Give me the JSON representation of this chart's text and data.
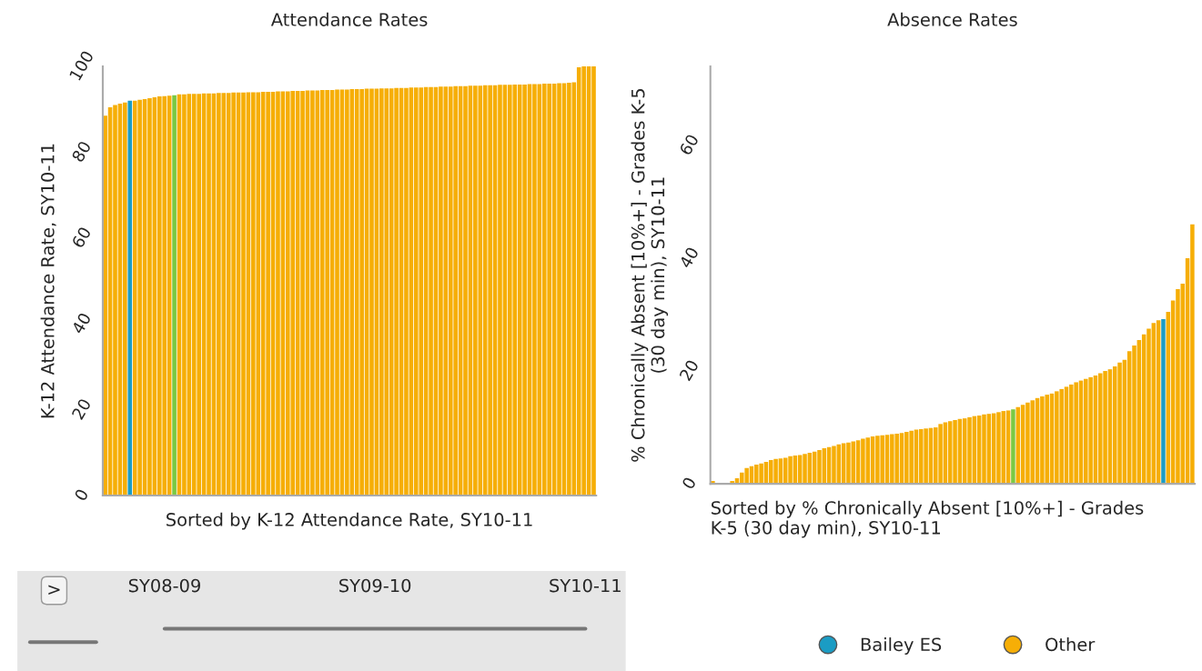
{
  "chart_data": [
    {
      "type": "bar",
      "title": "Attendance Rates",
      "xlabel": "Sorted by K-12 Attendance Rate, SY10-11",
      "ylabel": "K-12 Attendance Rate, SY10-11",
      "ylim": [
        0,
        100
      ],
      "yticks": [
        0,
        20,
        40,
        60,
        80,
        100
      ],
      "grid": false,
      "legend": false,
      "categories": [
        null,
        null,
        null,
        null,
        null,
        null,
        null,
        null,
        null,
        null,
        null,
        null,
        null,
        null,
        null,
        null,
        null,
        null,
        null,
        null,
        null,
        null,
        null,
        null,
        null,
        null,
        null,
        null,
        null,
        null,
        null,
        null,
        null,
        null,
        null,
        null,
        null,
        null,
        null,
        null,
        null,
        null,
        null,
        null,
        null,
        null,
        null,
        null,
        null,
        null,
        null,
        null,
        null,
        null,
        null,
        null,
        null,
        null,
        null,
        null,
        null,
        null,
        null,
        null,
        null,
        null,
        null,
        null,
        null,
        null,
        null,
        null,
        null,
        null,
        null,
        null,
        null,
        null,
        null,
        null,
        null,
        null,
        null,
        null,
        null,
        null,
        null,
        null,
        null,
        null,
        null,
        null,
        null,
        null,
        null,
        null,
        null,
        null,
        null,
        null
      ],
      "annotations": [
        ">",
        "SY08-09",
        "SY09-10",
        "SY10-11"
      ],
      "series": [
        {
          "color": "#1b9cc4",
          "values": [
            null,
            null,
            null,
            null,
            null,
            92.0,
            null,
            null,
            null,
            null,
            null,
            null,
            null,
            null,
            null,
            null,
            null,
            null,
            null,
            null,
            null,
            null,
            null,
            null,
            null,
            null,
            null,
            null,
            null,
            null,
            null,
            null,
            null,
            null,
            null,
            null,
            null,
            null,
            null,
            null,
            null,
            null,
            null,
            null,
            null,
            null,
            null,
            null,
            null,
            null,
            null,
            null,
            null,
            null,
            null,
            null,
            null,
            null,
            null,
            null,
            null,
            null,
            null,
            null,
            null,
            null,
            null,
            null,
            null,
            null,
            null,
            null,
            null,
            null,
            null,
            null,
            null,
            null,
            null,
            null,
            null,
            null,
            null,
            null,
            null,
            null,
            null,
            null,
            null,
            null,
            null,
            null,
            null,
            null,
            null,
            null,
            null,
            null,
            null,
            null
          ]
        },
        {
          "color": "#f6ae06",
          "colors": [
            null,
            null,
            null,
            null,
            null,
            null,
            null,
            null,
            null,
            null,
            null,
            null,
            null,
            null,
            "#7ac943",
            null,
            null,
            null,
            null,
            null,
            null,
            null,
            null,
            null,
            null,
            null,
            null,
            null,
            null,
            null,
            null,
            null,
            null,
            null,
            null,
            null,
            null,
            null,
            null,
            null,
            null,
            null,
            null,
            null,
            null,
            null,
            null,
            null,
            null,
            null,
            null,
            null,
            null,
            null,
            null,
            null,
            null,
            null,
            null,
            null,
            null,
            null,
            null,
            null,
            null,
            null,
            null,
            null,
            null,
            null,
            null,
            null,
            null,
            null,
            null,
            null,
            null,
            null,
            null,
            null,
            null,
            null,
            null,
            null,
            null,
            null,
            null,
            null,
            null,
            null,
            null,
            null,
            null,
            null,
            null,
            null,
            null,
            null,
            null,
            null
          ],
          "values": [
            88.5,
            90.5,
            91.0,
            91.3,
            91.6,
            null,
            92.0,
            92.2,
            92.4,
            92.6,
            92.8,
            93.0,
            93.1,
            93.2,
            93.3,
            93.5,
            93.5,
            93.6,
            93.6,
            93.6,
            93.7,
            93.7,
            93.7,
            93.8,
            93.8,
            93.8,
            93.9,
            93.9,
            93.9,
            94.0,
            94.0,
            94.0,
            94.1,
            94.1,
            94.1,
            94.2,
            94.2,
            94.2,
            94.3,
            94.3,
            94.3,
            94.4,
            94.4,
            94.4,
            94.5,
            94.5,
            94.5,
            94.6,
            94.6,
            94.6,
            94.7,
            94.7,
            94.7,
            94.8,
            94.8,
            94.8,
            94.9,
            94.9,
            94.9,
            95.0,
            95.0,
            95.0,
            95.1,
            95.1,
            95.1,
            95.2,
            95.2,
            95.2,
            95.3,
            95.3,
            95.3,
            95.4,
            95.4,
            95.4,
            95.5,
            95.5,
            95.5,
            95.6,
            95.6,
            95.6,
            95.7,
            95.7,
            95.7,
            95.8,
            95.8,
            95.8,
            95.9,
            95.9,
            95.9,
            96.0,
            96.0,
            96.0,
            96.1,
            96.1,
            96.2,
            96.3,
            99.8,
            100,
            100,
            100
          ]
        }
      ]
    },
    {
      "type": "bar",
      "title": "Absence Rates",
      "xlabel": "Sorted by % Chronically Absent [10%+] - Grades\nK-5 (30 day min), SY10-11",
      "ylabel": "% Chronically Absent [10%+] - Grades K-5\n(30 day min), SY10-11",
      "ylim": [
        0,
        74
      ],
      "yticks": [
        0,
        20,
        40,
        60
      ],
      "grid": false,
      "legend": "bottom",
      "marker": "circle",
      "categories": [
        null,
        null,
        null,
        null,
        null,
        null,
        null,
        null,
        null,
        null,
        null,
        null,
        null,
        null,
        null,
        null,
        null,
        null,
        null,
        null,
        null,
        null,
        null,
        null,
        null,
        null,
        null,
        null,
        null,
        null,
        null,
        null,
        null,
        null,
        null,
        null,
        null,
        null,
        null,
        null,
        null,
        null,
        null,
        null,
        null,
        null,
        null,
        null,
        null,
        null,
        null,
        null,
        null,
        null,
        null,
        null,
        null,
        null,
        null,
        null,
        null,
        null,
        null,
        null,
        null,
        null,
        null,
        null,
        null,
        null,
        null,
        null,
        null,
        null,
        null,
        null,
        null,
        null,
        null,
        null,
        null,
        null,
        null,
        null,
        null,
        null,
        null,
        null,
        null,
        null,
        null,
        null,
        null,
        null,
        null,
        null,
        null,
        null,
        null,
        null
      ],
      "series": [
        {
          "name": "Bailey ES",
          "color": "#1b9cc4",
          "values": [
            null,
            null,
            null,
            null,
            null,
            null,
            null,
            null,
            null,
            null,
            null,
            null,
            null,
            null,
            null,
            null,
            null,
            null,
            null,
            null,
            null,
            null,
            null,
            null,
            null,
            null,
            null,
            null,
            null,
            null,
            null,
            null,
            null,
            null,
            null,
            null,
            null,
            null,
            null,
            null,
            null,
            null,
            null,
            null,
            null,
            null,
            null,
            null,
            null,
            null,
            null,
            null,
            null,
            null,
            null,
            null,
            null,
            null,
            null,
            null,
            null,
            null,
            null,
            null,
            null,
            null,
            null,
            null,
            null,
            null,
            null,
            null,
            null,
            null,
            null,
            null,
            null,
            null,
            null,
            null,
            null,
            null,
            null,
            null,
            null,
            null,
            null,
            null,
            null,
            null,
            null,
            null,
            null,
            29.2,
            null,
            null,
            null,
            null,
            null,
            null
          ]
        },
        {
          "name": "Other",
          "color": "#f6ae06",
          "colors": [
            null,
            null,
            null,
            null,
            null,
            null,
            null,
            null,
            null,
            null,
            null,
            null,
            null,
            null,
            null,
            null,
            null,
            null,
            null,
            null,
            null,
            null,
            null,
            null,
            null,
            null,
            null,
            null,
            null,
            null,
            null,
            null,
            null,
            null,
            null,
            null,
            null,
            null,
            null,
            null,
            null,
            null,
            null,
            null,
            null,
            null,
            null,
            null,
            null,
            null,
            null,
            null,
            null,
            null,
            null,
            null,
            null,
            null,
            null,
            null,
            null,
            null,
            "#7ac943",
            null,
            null,
            null,
            null,
            null,
            null,
            null,
            null,
            null,
            null,
            null,
            null,
            null,
            null,
            null,
            null,
            null,
            null,
            null,
            null,
            null,
            null,
            null,
            null,
            null,
            null,
            null,
            null,
            null,
            null,
            null,
            null,
            null,
            null,
            null,
            null,
            null
          ],
          "values": [
            0.5,
            0,
            0,
            0,
            0.5,
            1.0,
            2.0,
            2.8,
            3.1,
            3.4,
            3.6,
            3.9,
            4.2,
            4.4,
            4.5,
            4.6,
            4.9,
            5.0,
            5.1,
            5.3,
            5.5,
            5.7,
            6.0,
            6.3,
            6.5,
            6.7,
            7.0,
            7.2,
            7.3,
            7.5,
            7.7,
            8.0,
            8.2,
            8.4,
            8.5,
            8.6,
            8.7,
            8.8,
            8.9,
            9.0,
            9.2,
            9.4,
            9.6,
            9.7,
            9.8,
            9.9,
            10.0,
            10.6,
            10.9,
            11.1,
            11.3,
            11.5,
            11.6,
            11.8,
            12.0,
            12.1,
            12.3,
            12.4,
            12.5,
            12.7,
            12.9,
            13.0,
            13.2,
            13.6,
            14.0,
            14.4,
            14.8,
            15.2,
            15.5,
            15.8,
            16.0,
            16.4,
            16.8,
            17.2,
            17.6,
            18.0,
            18.3,
            18.6,
            18.9,
            19.2,
            19.6,
            20.0,
            20.3,
            20.8,
            21.5,
            22.0,
            23.5,
            24.5,
            25.5,
            26.5,
            27.5,
            28.5,
            29.0,
            null,
            30.5,
            32.5,
            34.5,
            35.5,
            40,
            46
          ]
        }
      ]
    }
  ]
}
